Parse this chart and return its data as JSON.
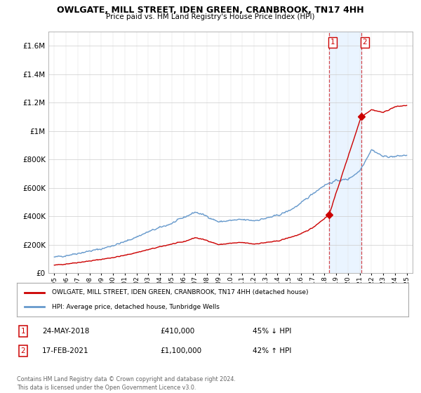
{
  "title": "OWLGATE, MILL STREET, IDEN GREEN, CRANBROOK, TN17 4HH",
  "subtitle": "Price paid vs. HM Land Registry's House Price Index (HPI)",
  "hpi_color": "#6699cc",
  "price_color": "#cc0000",
  "marker_color": "#cc0000",
  "bg_color": "#ffffff",
  "shade_color": "#ddeeff",
  "vline_color": "#cc0000",
  "ylim": [
    0,
    1700000
  ],
  "xmin": 1994.5,
  "xmax": 2025.5,
  "transaction1_x": 2018.386,
  "transaction1_y": 410000,
  "transaction2_x": 2021.12,
  "transaction2_y": 1100000,
  "legend_house_label": "OWLGATE, MILL STREET, IDEN GREEN, CRANBROOK, TN17 4HH (detached house)",
  "legend_hpi_label": "HPI: Average price, detached house, Tunbridge Wells",
  "note1_date": "24-MAY-2018",
  "note1_price": "£410,000",
  "note1_hpi": "45% ↓ HPI",
  "note2_date": "17-FEB-2021",
  "note2_price": "£1,100,000",
  "note2_hpi": "42% ↑ HPI",
  "footer": "Contains HM Land Registry data © Crown copyright and database right 2024.\nThis data is licensed under the Open Government Licence v3.0.",
  "hpi_key_x": [
    1995,
    1996,
    1997,
    1998,
    1999,
    2000,
    2001,
    2002,
    2003,
    2004,
    2005,
    2006,
    2007,
    2008,
    2009,
    2010,
    2011,
    2012,
    2013,
    2014,
    2015,
    2016,
    2017,
    2018,
    2019,
    2020,
    2021,
    2022,
    2023,
    2024,
    2025
  ],
  "hpi_key_y": [
    110000,
    125000,
    140000,
    155000,
    170000,
    195000,
    220000,
    255000,
    290000,
    320000,
    350000,
    390000,
    430000,
    400000,
    360000,
    370000,
    375000,
    370000,
    385000,
    405000,
    440000,
    490000,
    560000,
    620000,
    650000,
    660000,
    720000,
    870000,
    820000,
    820000,
    830000
  ],
  "price_key_x": [
    1995,
    1996,
    1997,
    1998,
    1999,
    2000,
    2001,
    2002,
    2003,
    2004,
    2005,
    2006,
    2007,
    2008,
    2009,
    2010,
    2011,
    2012,
    2013,
    2014,
    2015,
    2016,
    2017,
    2018.386,
    2021.12,
    2022,
    2023,
    2024,
    2025
  ],
  "price_key_y": [
    55000,
    65000,
    75000,
    85000,
    97000,
    110000,
    125000,
    145000,
    165000,
    185000,
    205000,
    220000,
    250000,
    230000,
    200000,
    210000,
    215000,
    205000,
    215000,
    225000,
    250000,
    275000,
    320000,
    410000,
    1100000,
    1150000,
    1130000,
    1170000,
    1180000
  ]
}
